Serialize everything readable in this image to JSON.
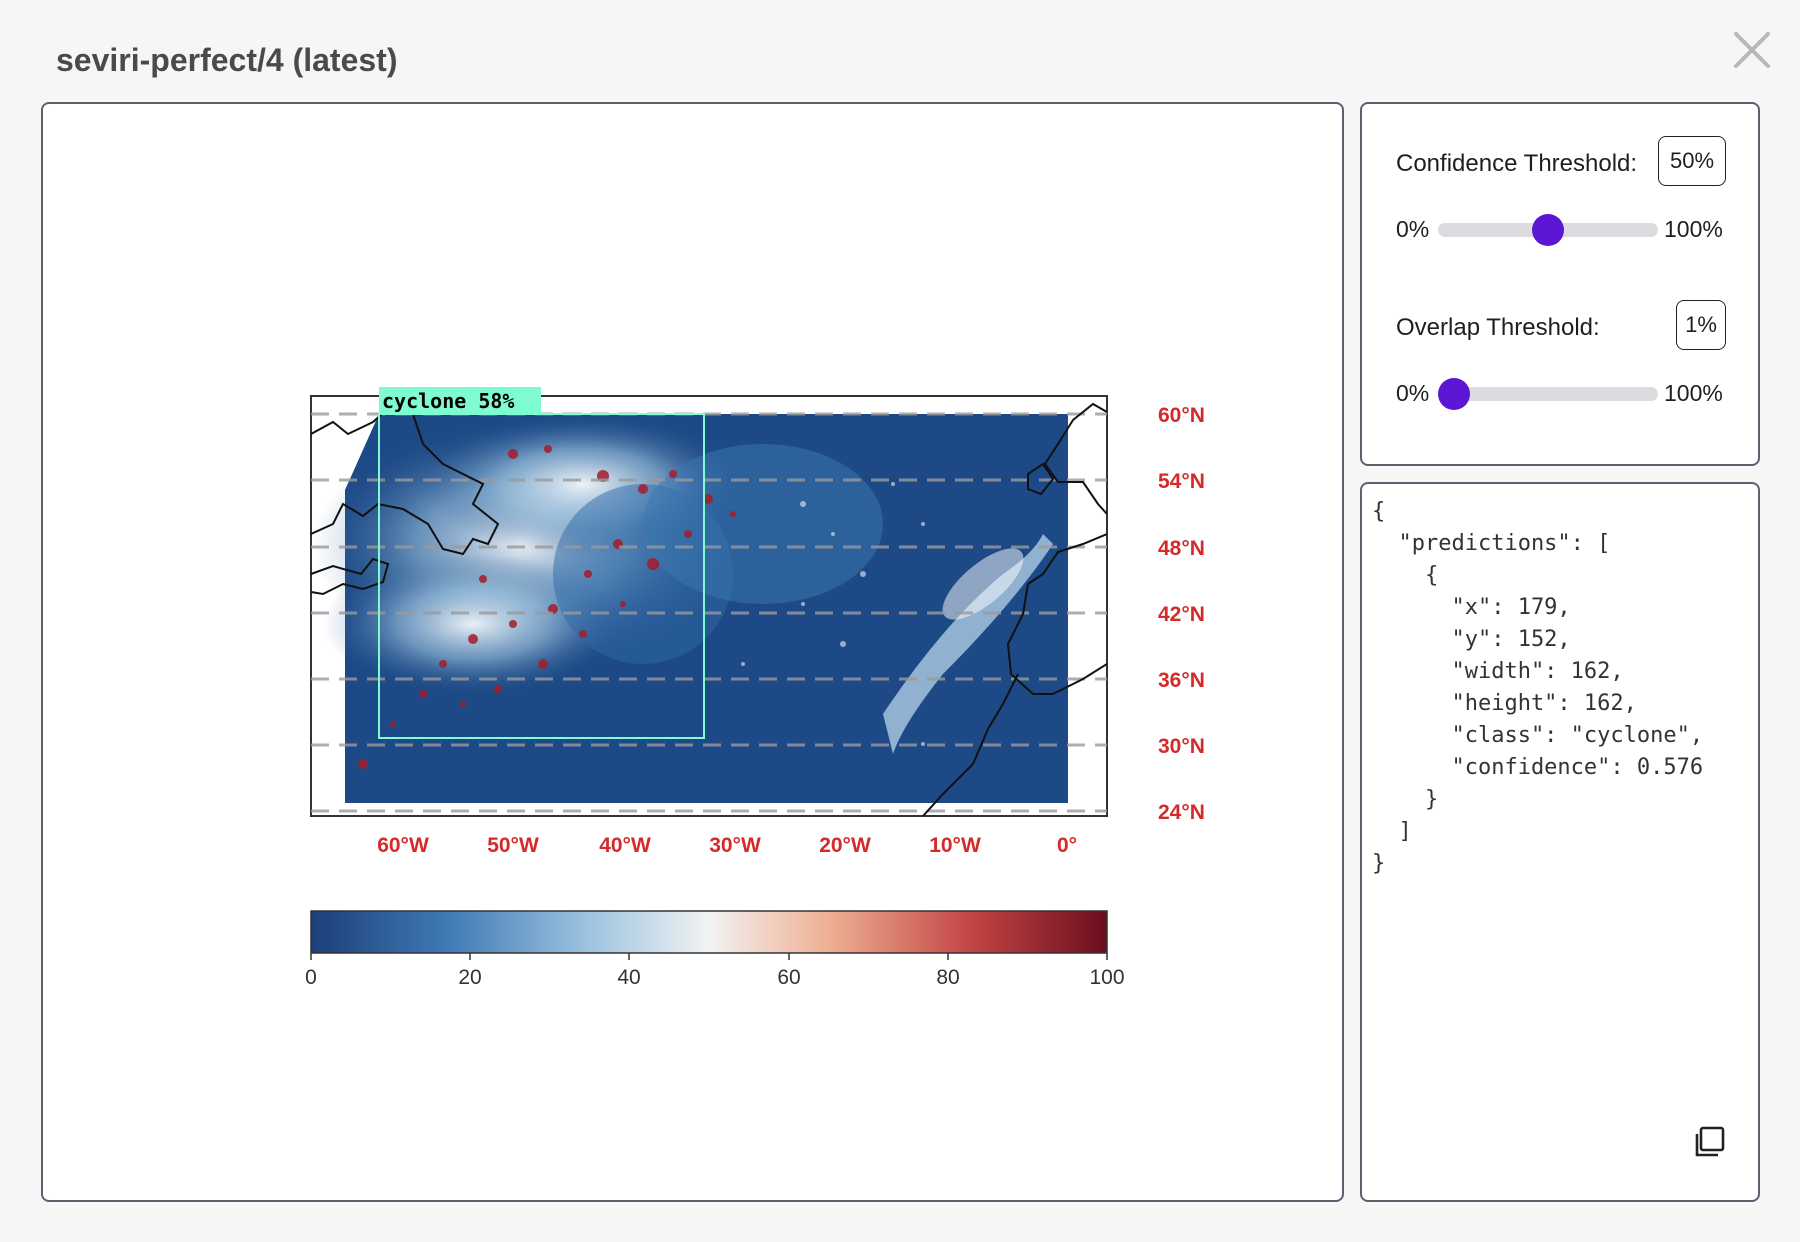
{
  "modal": {
    "title": "seviri-perfect/4 (latest)",
    "close_icon": "close-icon"
  },
  "detection": {
    "label": "cyclone 58%",
    "box_color": "#7ffccf"
  },
  "map": {
    "lat_labels": [
      "60°N",
      "54°N",
      "48°N",
      "42°N",
      "36°N",
      "30°N",
      "24°N"
    ],
    "lon_labels": [
      "60°W",
      "50°W",
      "40°W",
      "30°W",
      "20°W",
      "10°W",
      "0°"
    ],
    "label_color": "#d42a2a"
  },
  "colorbar": {
    "ticks": [
      "0",
      "20",
      "40",
      "60",
      "80",
      "100"
    ],
    "stops": [
      "#1c3f7a",
      "#3f79b4",
      "#9ec4df",
      "#f2f2f2",
      "#eeb093",
      "#c24444",
      "#6b0e1e"
    ]
  },
  "controls": {
    "confidence": {
      "label": "Confidence Threshold:",
      "value_text": "50%",
      "min_label": "0%",
      "max_label": "100%",
      "value": 0.5
    },
    "overlap": {
      "label": "Overlap Threshold:",
      "value_text": "1%",
      "min_label": "0%",
      "max_label": "100%",
      "value": 0.01
    },
    "accent": "#5b17d3"
  },
  "output": {
    "json_text": "{\n  \"predictions\": [\n    {\n      \"x\": 179,\n      \"y\": 152,\n      \"width\": 162,\n      \"height\": 162,\n      \"class\": \"cyclone\",\n      \"confidence\": 0.576\n    }\n  ]\n}",
    "copy_icon": "copy-icon"
  }
}
